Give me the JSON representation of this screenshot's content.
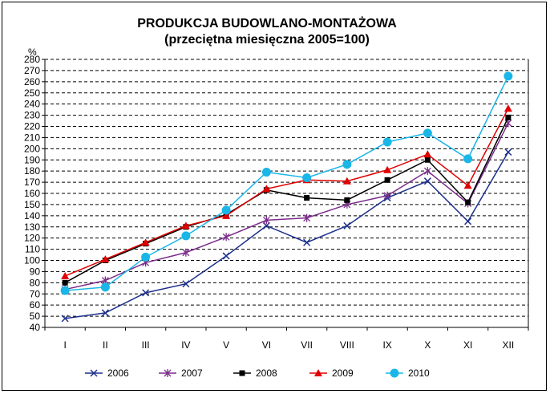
{
  "chart_data": {
    "type": "line",
    "title": "PRODUKCJA BUDOWLANO-MONTAŻOWA",
    "subtitle": "(przeciętna miesięczna 2005=100)",
    "ylabel": "%",
    "xlabel": "",
    "ylim": [
      40,
      280
    ],
    "ytick_step": 10,
    "grid": "horizontal-dashed",
    "legend_position": "bottom",
    "categories": [
      "I",
      "II",
      "III",
      "IV",
      "V",
      "VI",
      "VII",
      "VIII",
      "IX",
      "X",
      "XI",
      "XII"
    ],
    "series": [
      {
        "name": "2006",
        "color": "#1c2f8a",
        "marker": "x",
        "values": [
          48,
          53,
          71,
          79,
          104,
          131,
          116,
          131,
          156,
          171,
          135,
          197
        ]
      },
      {
        "name": "2007",
        "color": "#7b2c8a",
        "marker": "star",
        "values": [
          74,
          82,
          98,
          107,
          121,
          136,
          138,
          150,
          158,
          180,
          151,
          223
        ]
      },
      {
        "name": "2008",
        "color": "#000000",
        "marker": "square",
        "values": [
          80,
          100,
          115,
          130,
          141,
          163,
          156,
          154,
          172,
          190,
          152,
          228
        ]
      },
      {
        "name": "2009",
        "color": "#e00000",
        "marker": "triangle",
        "values": [
          86,
          101,
          116,
          131,
          140,
          164,
          172,
          171,
          181,
          195,
          167,
          236
        ]
      },
      {
        "name": "2010",
        "color": "#1ab6e8",
        "marker": "circle",
        "values": [
          73,
          76,
          103,
          122,
          145,
          179,
          174,
          186,
          206,
          214,
          191,
          265
        ]
      }
    ]
  }
}
